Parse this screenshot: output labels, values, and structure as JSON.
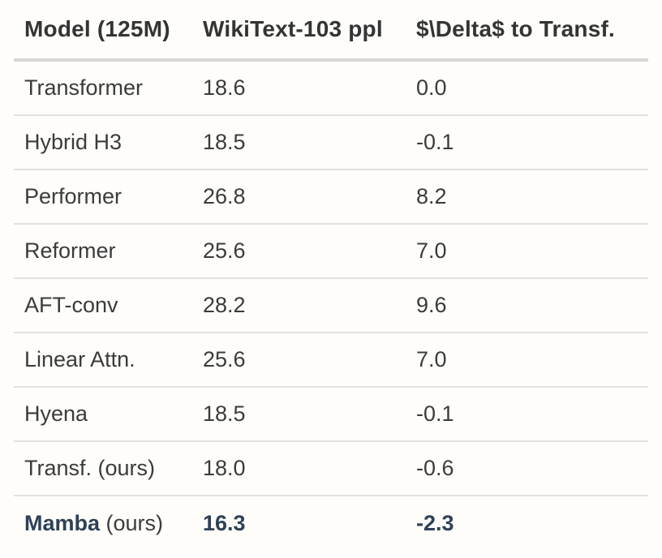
{
  "table": {
    "header": {
      "model": "Model (125M)",
      "ppl": "WikiText-103 ppl",
      "delta": "$\\Delta$ to Transf."
    },
    "rows": [
      {
        "name": "Transformer",
        "name_suffix": "",
        "ppl": "18.6",
        "delta": "0.0",
        "emphasis": false
      },
      {
        "name": "Hybrid H3",
        "name_suffix": "",
        "ppl": "18.5",
        "delta": "-0.1",
        "emphasis": false
      },
      {
        "name": "Performer",
        "name_suffix": "",
        "ppl": "26.8",
        "delta": "8.2",
        "emphasis": false
      },
      {
        "name": "Reformer",
        "name_suffix": "",
        "ppl": "25.6",
        "delta": "7.0",
        "emphasis": false
      },
      {
        "name": "AFT-conv",
        "name_suffix": "",
        "ppl": "28.2",
        "delta": "9.6",
        "emphasis": false
      },
      {
        "name": "Linear Attn.",
        "name_suffix": "",
        "ppl": "25.6",
        "delta": "7.0",
        "emphasis": false
      },
      {
        "name": "Hyena",
        "name_suffix": "",
        "ppl": "18.5",
        "delta": "-0.1",
        "emphasis": false
      },
      {
        "name": "Transf. (ours)",
        "name_suffix": "",
        "ppl": "18.0",
        "delta": "-0.6",
        "emphasis": false
      },
      {
        "name": "Mamba",
        "name_suffix": " (ours)",
        "ppl": "16.3",
        "delta": "-2.3",
        "emphasis": true
      }
    ],
    "colors": {
      "emphasis_navy": "#2e4156",
      "body_text": "#3b3b3b",
      "header_text": "#343434",
      "header_rule": "#d9d7d3",
      "row_rule": "#e3e1dd",
      "background": "#fffdfa"
    }
  }
}
